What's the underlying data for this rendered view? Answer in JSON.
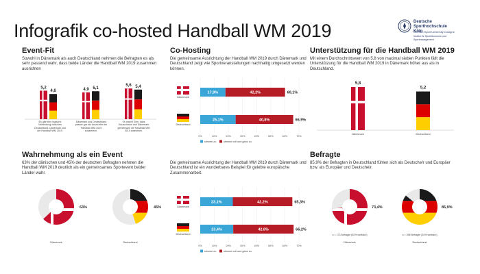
{
  "page": {
    "title": "Infografik co-hosted Handball WM 2019",
    "logo": {
      "name": "Deutsche Sporthochschule Köln",
      "subtitle": "German Sport University Cologne",
      "institute": "Institut für Sportökonomie und Sportmanagement"
    }
  },
  "event_fit": {
    "heading": "Event-Fit",
    "text": "Sowohl in Dänemark als auch Deutschland nehmen die Befragten es als sehr passend wahr, dass beide Länder die Handball WM 2019 zusammen ausrichten"
  },
  "co_hosting": {
    "heading": "Co-Hosting",
    "text": "Die gemeinsame Ausrichtung der Handball WM 2019 durch Dänemark und Deutschland zeigt wie Sportveranstaltungen nachhaltig umgesetzt werden können."
  },
  "support": {
    "heading": "Unterstützung für die Handball WM 2019",
    "text": "Mit einem Durchschnittswert von 5,8 von maximal sieben Punkten fällt die Unterstützung für die Handball WM 2019 in Dänemark höher aus als in Deutschland."
  },
  "perception": {
    "heading": "Wahrnehmung als ein Event",
    "text": "63% der dänischen und 45% der deutschen Befragten nehmen die Handball WM 2019 deutlich als ein gemeinsames Sportevent beider Länder wahr."
  },
  "example": {
    "text": "Die gemeinsame Ausrichtung der Handball WM 2019 durch Dänemark und Deutschland ist ein wunderbares Beispiel für gelebte europäische Zusammenarbeit."
  },
  "survey": {
    "heading": "Befragte",
    "text": "85,9% der Befragten in Deutschland fühlen sich als Deutsche/r und Europäer bzw. als Europäer und Deutsche/r."
  },
  "colors": {
    "denmark_red": "#c8102e",
    "germany_black": "#1a1a1a",
    "germany_red": "#dd0000",
    "germany_gold": "#ffce00",
    "light_blue": "#3aa6d8",
    "dark_red": "#b51c25",
    "grey_ring": "#e9e9e9",
    "grid": "#cccccc"
  },
  "chart_data": [
    {
      "id": "event_fit",
      "type": "bar",
      "ylim": [
        0,
        7
      ],
      "categories": [
        "Es gibt eine logische Verbindung zwischen Deutschland, Dänemark und der Handball WM 2019.",
        "Dänemark und Deutschland passen gut als Ausrichter der Handball WM 2019 zusammen.",
        "Es macht Sinn, dass Deutschland und Dänemark gemeinsam die Handball WM 2019 ausrichten."
      ],
      "series": [
        {
          "name": "Dänemark",
          "values": [
            5.2,
            4.9,
            5.6
          ],
          "labels": [
            "5,2",
            "4,9",
            "5,6"
          ]
        },
        {
          "name": "Deutschland",
          "values": [
            4.6,
            5.1,
            5.4
          ],
          "labels": [
            "4,6",
            "5,1",
            "5,4"
          ]
        }
      ]
    },
    {
      "id": "co_hosting_1",
      "type": "bar",
      "orientation": "horizontal",
      "stacked": true,
      "xlim": [
        0,
        70
      ],
      "x_ticks": [
        "0%",
        "10%",
        "20%",
        "30%",
        "40%",
        "50%",
        "60%",
        "70%"
      ],
      "categories": [
        "Dänemark",
        "Deutschland"
      ],
      "series": [
        {
          "name": "stimme zu",
          "values": [
            17.9,
            25.1
          ],
          "labels": [
            "17,9%",
            "25,1%"
          ]
        },
        {
          "name": "stimme voll und ganz zu",
          "values": [
            42.2,
            40.8
          ],
          "labels": [
            "42,2%",
            "40,8%"
          ]
        }
      ],
      "totals": [
        "60,1%",
        "65,9%"
      ]
    },
    {
      "id": "co_hosting_2",
      "type": "bar",
      "orientation": "horizontal",
      "stacked": true,
      "xlim": [
        0,
        70
      ],
      "x_ticks": [
        "0%",
        "10%",
        "20%",
        "30%",
        "40%",
        "50%",
        "60%",
        "70%"
      ],
      "categories": [
        "Dänemark",
        "Deutschland"
      ],
      "series": [
        {
          "name": "stimme zu",
          "values": [
            23.1,
            23.4
          ],
          "labels": [
            "23,1%",
            "23,4%"
          ]
        },
        {
          "name": "stimme voll und ganz zu",
          "values": [
            42.2,
            42.8
          ],
          "labels": [
            "42,2%",
            "42,8%"
          ]
        }
      ],
      "totals": [
        "65,3%",
        "66,2%"
      ]
    },
    {
      "id": "support",
      "type": "bar",
      "ylim": [
        0,
        7
      ],
      "categories": [
        "Dänemark",
        "Deutschland"
      ],
      "values": [
        5.8,
        5.2
      ],
      "labels": [
        "5,8",
        "5,2"
      ]
    },
    {
      "id": "perception",
      "type": "pie",
      "slices": [
        {
          "name": "Dänemark",
          "value": 63,
          "label": "63%"
        },
        {
          "name": "Deutschland",
          "value": 45,
          "label": "45%"
        }
      ]
    },
    {
      "id": "respondents",
      "type": "pie",
      "slices": [
        {
          "name": "Dänemark",
          "value": 73.4,
          "label": "73,4%",
          "note": "n = 173 Befragte (52% weiblich)"
        },
        {
          "name": "Deutschland",
          "value": 85.9,
          "label": "85,9%",
          "note": "n = 298 Befragte (34% weiblich)"
        }
      ]
    }
  ]
}
